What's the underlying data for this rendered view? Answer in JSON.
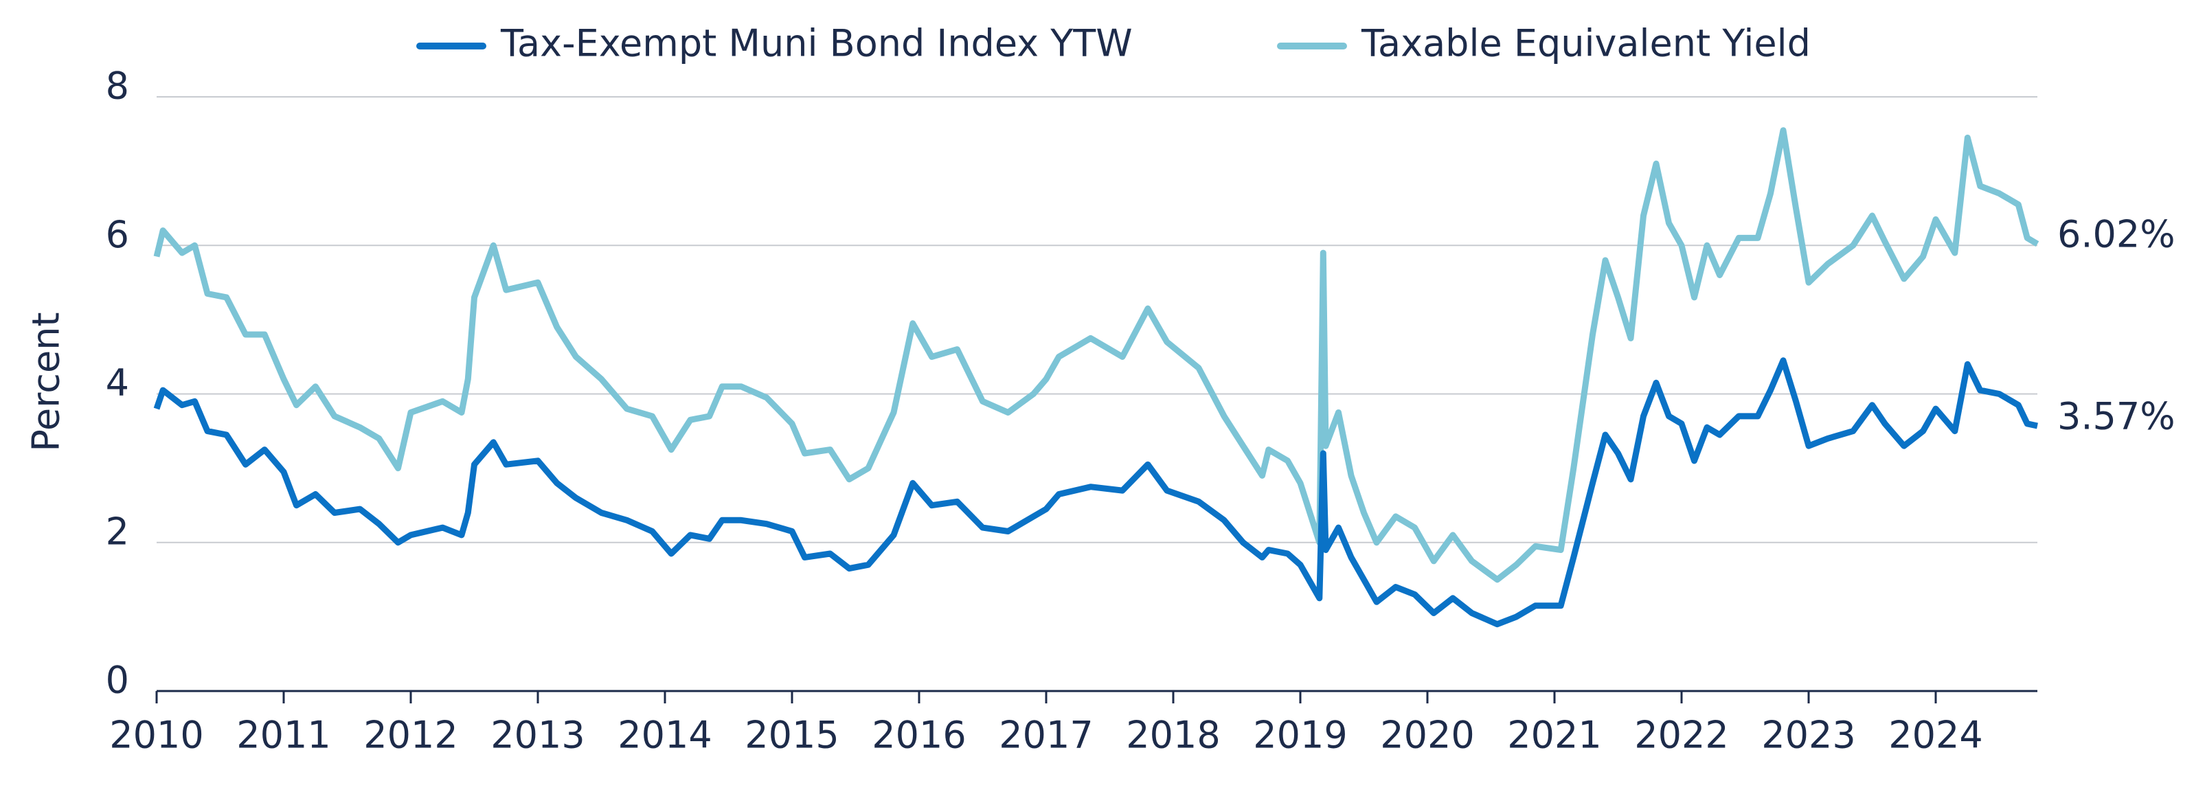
{
  "chart_data": {
    "type": "line",
    "y_label": "Percent",
    "xlim": [
      2010,
      2024.8
    ],
    "xticks": [
      2010,
      2011,
      2012,
      2013,
      2014,
      2015,
      2016,
      2017,
      2018,
      2019,
      2020,
      2021,
      2022,
      2023,
      2024
    ],
    "ylim": [
      0,
      8
    ],
    "yticks": [
      0,
      2,
      4,
      6,
      8
    ],
    "grid": true,
    "legend": "top",
    "x": [
      2010.0,
      2010.05,
      2010.2,
      2010.3,
      2010.4,
      2010.55,
      2010.7,
      2010.85,
      2011.0,
      2011.1,
      2011.25,
      2011.4,
      2011.6,
      2011.75,
      2011.9,
      2012.0,
      2012.25,
      2012.4,
      2012.45,
      2012.5,
      2012.65,
      2012.75,
      2013.0,
      2013.15,
      2013.3,
      2013.5,
      2013.7,
      2013.9,
      2014.05,
      2014.2,
      2014.35,
      2014.45,
      2014.6,
      2014.8,
      2015.0,
      2015.1,
      2015.3,
      2015.45,
      2015.6,
      2015.8,
      2015.95,
      2016.1,
      2016.3,
      2016.5,
      2016.7,
      2016.9,
      2017.0,
      2017.1,
      2017.35,
      2017.6,
      2017.8,
      2017.95,
      2018.2,
      2018.4,
      2018.55,
      2018.7,
      2018.75,
      2018.9,
      2019.0,
      2019.15,
      2019.18,
      2019.2,
      2019.3,
      2019.4,
      2019.5,
      2019.6,
      2019.75,
      2019.9,
      2020.05,
      2020.2,
      2020.35,
      2020.55,
      2020.7,
      2020.85,
      2021.05,
      2021.15,
      2021.3,
      2021.4,
      2021.5,
      2021.6,
      2021.7,
      2021.8,
      2021.9,
      2022.0,
      2022.1,
      2022.2,
      2022.3,
      2022.45,
      2022.6,
      2022.7,
      2022.8,
      2022.9,
      2023.0,
      2023.15,
      2023.35,
      2023.5,
      2023.6,
      2023.75,
      2023.9,
      2024.0,
      2024.15,
      2024.25,
      2024.35,
      2024.5,
      2024.65,
      2024.72,
      2024.8
    ],
    "series": [
      {
        "name": "Tax-Exempt Muni Bond Index YTW",
        "color": "#0a72c6",
        "end_label": "3.57%",
        "values": [
          3.8,
          4.05,
          3.85,
          3.9,
          3.5,
          3.45,
          3.05,
          3.25,
          2.95,
          2.5,
          2.65,
          2.4,
          2.45,
          2.25,
          2.0,
          2.1,
          2.2,
          2.1,
          2.4,
          3.05,
          3.35,
          3.05,
          3.1,
          2.8,
          2.6,
          2.4,
          2.3,
          2.15,
          1.85,
          2.1,
          2.05,
          2.3,
          2.3,
          2.25,
          2.15,
          1.8,
          1.85,
          1.65,
          1.7,
          2.1,
          2.8,
          2.5,
          2.55,
          2.2,
          2.15,
          2.35,
          2.45,
          2.65,
          2.75,
          2.7,
          3.05,
          2.7,
          2.55,
          2.3,
          2.0,
          1.8,
          1.9,
          1.85,
          1.7,
          1.25,
          3.2,
          1.9,
          2.2,
          1.8,
          1.5,
          1.2,
          1.4,
          1.3,
          1.05,
          1.25,
          1.05,
          0.9,
          1.0,
          1.15,
          1.15,
          1.8,
          2.8,
          3.45,
          3.2,
          2.85,
          3.7,
          4.15,
          3.7,
          3.6,
          3.1,
          3.55,
          3.45,
          3.7,
          3.7,
          4.05,
          4.45,
          3.9,
          3.3,
          3.4,
          3.5,
          3.85,
          3.6,
          3.3,
          3.5,
          3.8,
          3.5,
          4.4,
          4.05,
          4.0,
          3.85,
          3.6,
          3.57
        ]
      },
      {
        "name": "Taxable Equivalent Yield",
        "color": "#7cc4d6",
        "end_label": "6.02%",
        "values": [
          5.85,
          6.2,
          5.9,
          6.0,
          5.35,
          5.3,
          4.8,
          4.8,
          4.2,
          3.85,
          4.1,
          3.7,
          3.55,
          3.4,
          3.0,
          3.75,
          3.9,
          3.75,
          4.2,
          5.3,
          6.0,
          5.4,
          5.5,
          4.9,
          4.5,
          4.2,
          3.8,
          3.7,
          3.25,
          3.65,
          3.7,
          4.1,
          4.1,
          3.95,
          3.6,
          3.2,
          3.25,
          2.85,
          3.0,
          3.75,
          4.95,
          4.5,
          4.6,
          3.9,
          3.75,
          4.0,
          4.2,
          4.5,
          4.75,
          4.5,
          5.15,
          4.7,
          4.35,
          3.7,
          3.3,
          2.9,
          3.25,
          3.1,
          2.8,
          2.0,
          5.9,
          3.3,
          3.75,
          2.9,
          2.4,
          2.0,
          2.35,
          2.2,
          1.75,
          2.1,
          1.75,
          1.5,
          1.7,
          1.95,
          1.9,
          3.0,
          4.8,
          5.8,
          5.3,
          4.75,
          6.4,
          7.1,
          6.3,
          6.0,
          5.3,
          6.0,
          5.6,
          6.1,
          6.1,
          6.7,
          7.55,
          6.5,
          5.5,
          5.75,
          6.0,
          6.4,
          6.05,
          5.55,
          5.85,
          6.35,
          5.9,
          7.45,
          6.8,
          6.7,
          6.55,
          6.1,
          6.02
        ]
      }
    ]
  }
}
